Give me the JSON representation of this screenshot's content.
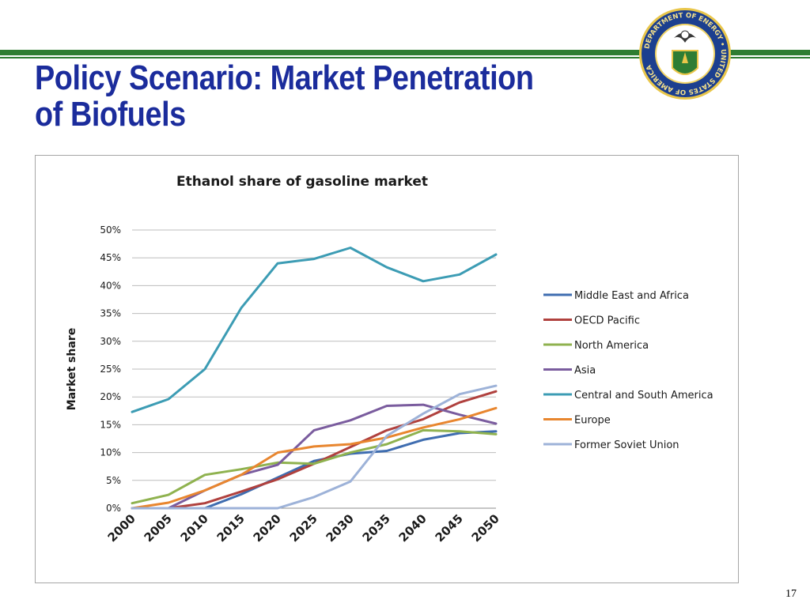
{
  "slide": {
    "title_line1": "Policy Scenario: Market Penetration",
    "title_line2": "of Biofuels",
    "page_number": "17",
    "accent_color": "#2f7d32",
    "title_color": "#1b2c9c"
  },
  "seal": {
    "text": "DEPARTMENT OF ENERGY • UNITED STATES OF AMERICA",
    "icon": "doe-seal-icon"
  },
  "chart_data": {
    "type": "line",
    "title": "Ethanol share of gasoline market",
    "xlabel": "",
    "ylabel": "Market share",
    "categories": [
      "2000",
      "2005",
      "2010",
      "2015",
      "2020",
      "2025",
      "2030",
      "2035",
      "2040",
      "2045",
      "2050"
    ],
    "y_ticks": [
      "0%",
      "5%",
      "10%",
      "15%",
      "20%",
      "25%",
      "30%",
      "35%",
      "40%",
      "45%",
      "50%"
    ],
    "ylim": [
      0,
      50
    ],
    "grid": true,
    "legend_position": "right",
    "series": [
      {
        "name": "Middle East and Africa",
        "color": "#3f6db0",
        "values": [
          0,
          0,
          0,
          2.5,
          5.5,
          8.5,
          9.8,
          10.3,
          12.3,
          13.5,
          13.8
        ]
      },
      {
        "name": "OECD Pacific",
        "color": "#b0413e",
        "values": [
          0,
          0,
          0.9,
          3,
          5.2,
          8,
          11,
          14,
          16,
          19,
          21
        ]
      },
      {
        "name": "North America",
        "color": "#8fb24f",
        "values": [
          0.9,
          2.4,
          6,
          7,
          8.2,
          8,
          10,
          11.5,
          14,
          13.8,
          13.3
        ]
      },
      {
        "name": "Asia",
        "color": "#7a5c9e",
        "values": [
          0,
          0,
          3.2,
          6,
          7.8,
          14,
          15.8,
          18.4,
          18.6,
          16.8,
          15.2
        ]
      },
      {
        "name": "Central and South America",
        "color": "#3c9cb4",
        "values": [
          17.3,
          19.6,
          25,
          36,
          44,
          44.8,
          46.8,
          43.3,
          40.8,
          42,
          45.6
        ]
      },
      {
        "name": "Europe",
        "color": "#e8862f",
        "values": [
          0,
          1,
          3.2,
          6,
          10,
          11.1,
          11.5,
          12.7,
          14.5,
          16,
          18
        ]
      },
      {
        "name": "Former Soviet Union",
        "color": "#9db2d8",
        "values": [
          0,
          0,
          0,
          0,
          0,
          2,
          4.8,
          13,
          17,
          20.5,
          22
        ]
      }
    ]
  }
}
